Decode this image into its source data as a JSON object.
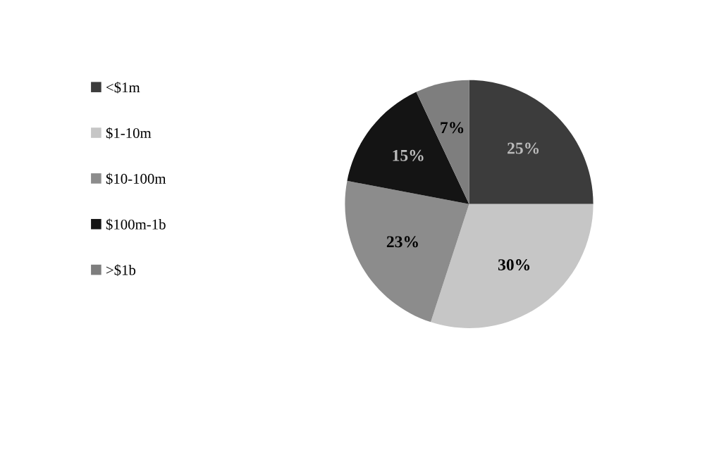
{
  "chart_data": {
    "type": "pie",
    "categories": [
      "<$1m",
      "$1-10m",
      "$10-100m",
      "$100m-1b",
      ">$1b"
    ],
    "values": [
      25,
      30,
      23,
      15,
      7
    ],
    "colors": [
      "#3c3c3c",
      "#c6c6c6",
      "#8c8c8c",
      "#141414",
      "#7e7e7e"
    ],
    "value_labels": [
      "25%",
      "30%",
      "23%",
      "15%",
      "7%"
    ],
    "legend": "left"
  }
}
